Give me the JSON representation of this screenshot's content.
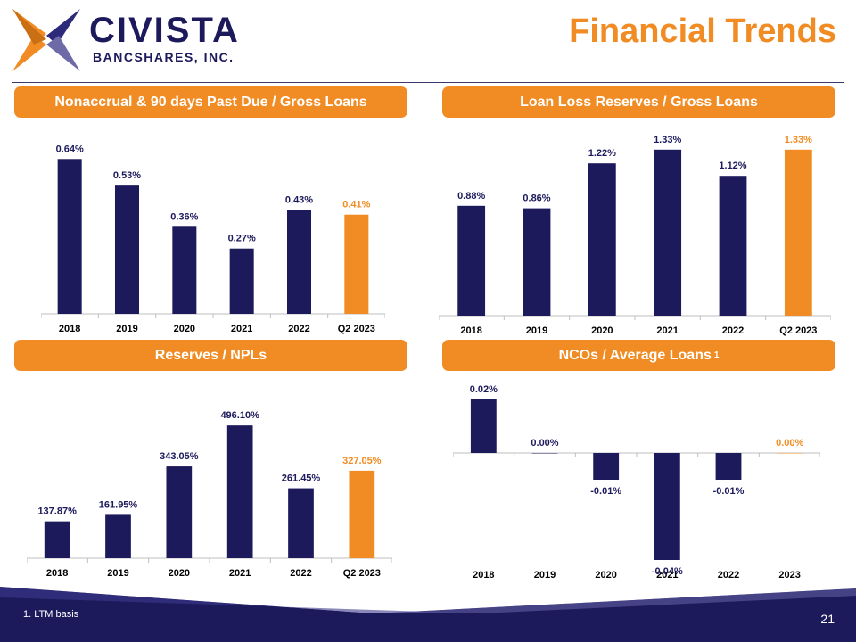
{
  "brand": {
    "name": "CIVISTA",
    "subtitle": "BANCSHARES, INC."
  },
  "page": {
    "title": "Financial Trends",
    "number": "21",
    "footnote": "1. LTM basis"
  },
  "colors": {
    "navy": "#1d1a5c",
    "orange": "#f08c23",
    "axis": "#bfbfbf"
  },
  "chart_data": [
    {
      "type": "bar",
      "title": "Nonaccrual & 90 days Past Due / Gross Loans",
      "categories": [
        "2018",
        "2019",
        "2020",
        "2021",
        "2022",
        "Q2 2023"
      ],
      "values": [
        0.64,
        0.53,
        0.36,
        0.27,
        0.43,
        0.41
      ],
      "labels": [
        "0.64%",
        "0.53%",
        "0.36%",
        "0.27%",
        "0.43%",
        "0.41%"
      ],
      "highlight_index": 5,
      "ylim": [
        0,
        0.7
      ]
    },
    {
      "type": "bar",
      "title": "Loan Loss Reserves / Gross Loans",
      "categories": [
        "2018",
        "2019",
        "2020",
        "2021",
        "2022",
        "Q2 2023"
      ],
      "values": [
        0.88,
        0.86,
        1.22,
        1.33,
        1.12,
        1.33
      ],
      "labels": [
        "0.88%",
        "0.86%",
        "1.22%",
        "1.33%",
        "1.12%",
        "1.33%"
      ],
      "highlight_index": 5,
      "ylim": [
        0,
        1.4
      ]
    },
    {
      "type": "bar",
      "title": "Reserves / NPLs",
      "categories": [
        "2018",
        "2019",
        "2020",
        "2021",
        "2022",
        "Q2 2023"
      ],
      "values": [
        137.87,
        161.95,
        343.05,
        496.1,
        261.45,
        327.05
      ],
      "labels": [
        "137.87%",
        "161.95%",
        "343.05%",
        "496.10%",
        "261.45%",
        "327.05%"
      ],
      "highlight_index": 5,
      "ylim": [
        0,
        520
      ]
    },
    {
      "type": "bar",
      "title": "NCOs / Average Loans",
      "title_sup": "1",
      "categories": [
        "2018",
        "2019",
        "2020",
        "2021",
        "2022",
        "2023"
      ],
      "values": [
        0.02,
        0.0,
        -0.01,
        -0.04,
        -0.01,
        0.0
      ],
      "labels": [
        "0.02%",
        "0.00%",
        "-0.01%",
        "-0.04%",
        "-0.01%",
        "0.00%"
      ],
      "highlight_index": 5,
      "ylim": [
        -0.04,
        0.02
      ]
    }
  ]
}
